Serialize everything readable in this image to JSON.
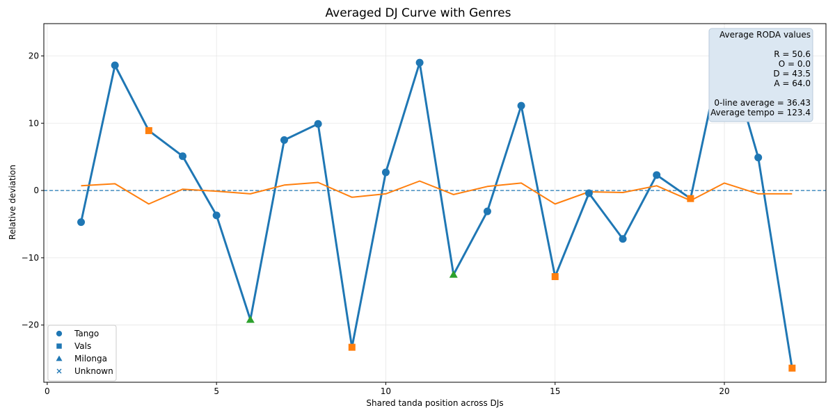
{
  "chart_data": {
    "type": "line",
    "title": "Averaged DJ Curve with Genres",
    "xlabel": "Shared tanda position across DJs",
    "ylabel": "Relative deviation",
    "xlim": [
      -0.1,
      23.0
    ],
    "ylim": [
      -28.5,
      24.8
    ],
    "xticks": [
      0,
      5,
      10,
      15,
      20
    ],
    "yticks": [
      -20,
      -10,
      0,
      10,
      20
    ],
    "ytick_labels": [
      "−20",
      "−10",
      "0",
      "10",
      "20"
    ],
    "grid": true,
    "reference_line": 0,
    "series": [
      {
        "name": "",
        "color": "#1f77b4",
        "x": [
          1,
          2,
          3,
          4,
          5,
          6,
          7,
          8,
          9,
          10,
          11,
          12,
          13,
          14,
          15,
          16,
          17,
          18,
          19,
          20,
          21,
          22
        ],
        "values": [
          -4.7,
          18.6,
          8.9,
          5.1,
          -3.7,
          -19.2,
          7.5,
          9.9,
          -23.3,
          2.7,
          19.0,
          -12.5,
          -3.1,
          12.6,
          -12.8,
          -0.4,
          -7.2,
          2.3,
          -1.2,
          22.3,
          4.9,
          -26.4
        ],
        "genres": [
          "Tango",
          "Tango",
          "Vals",
          "Tango",
          "Tango",
          "Milonga",
          "Tango",
          "Tango",
          "Vals",
          "Tango",
          "Tango",
          "Milonga",
          "Tango",
          "Tango",
          "Vals",
          "Tango",
          "Tango",
          "Tango",
          "Vals",
          "Tango",
          "Tango",
          "Vals"
        ]
      },
      {
        "name": "",
        "color": "#ff7f0e",
        "x": [
          1,
          2,
          3,
          4,
          5,
          6,
          7,
          8,
          9,
          10,
          11,
          12,
          13,
          14,
          15,
          16,
          17,
          18,
          19,
          20,
          21,
          22
        ],
        "values": [
          0.7,
          1.0,
          -2.0,
          0.2,
          -0.1,
          -0.5,
          0.8,
          1.2,
          -1.0,
          -0.5,
          1.4,
          -0.6,
          0.6,
          1.1,
          -2.0,
          -0.2,
          -0.3,
          0.7,
          -1.5,
          1.1,
          -0.5,
          -0.5
        ]
      }
    ],
    "genre_marker_colors": {
      "Tango": "#1f77b4",
      "Vals": "#ff7f0e",
      "Milonga": "#2ca02c"
    },
    "legend": {
      "placement": "bottom-left",
      "entries": [
        {
          "label": "Tango",
          "marker": "circle"
        },
        {
          "label": "Vals",
          "marker": "square"
        },
        {
          "label": "Milonga",
          "marker": "triangle"
        },
        {
          "label": "Unknown",
          "marker": "x"
        }
      ]
    },
    "annotation": {
      "placement": "top-right",
      "lines": [
        "Average RODA values",
        "",
        "R = 50.6",
        "O = 0.0",
        "D = 43.5",
        "A = 64.0",
        "",
        "0-line average = 36.43",
        "Average tempo = 123.4"
      ]
    }
  }
}
